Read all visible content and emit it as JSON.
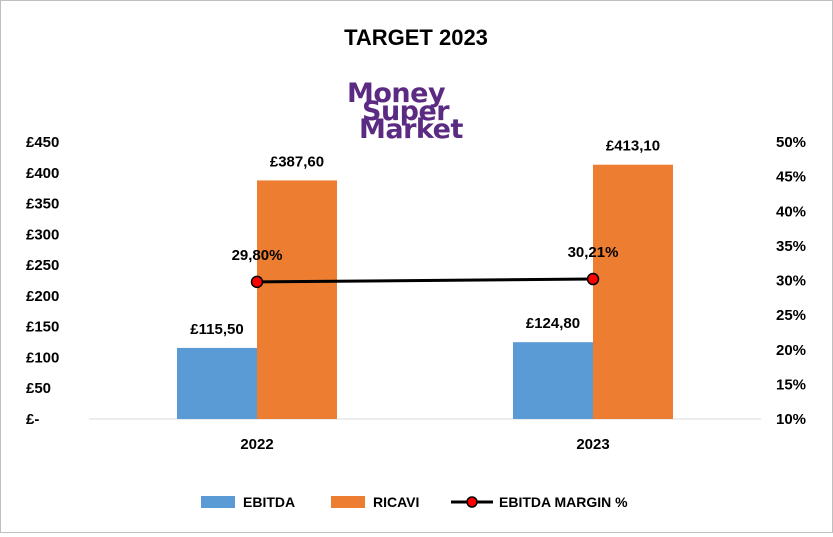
{
  "chart_data": {
    "type": "bar",
    "title": "TARGET 2023",
    "categories": [
      "2022",
      "2023"
    ],
    "series": [
      {
        "name": "EBITDA",
        "type": "bar",
        "axis": "left",
        "color": "#5b9bd5",
        "values": [
          115.5,
          124.8
        ],
        "labels": [
          "£115,50",
          "£124,80"
        ]
      },
      {
        "name": "RICAVI",
        "type": "bar",
        "axis": "left",
        "color": "#ed7d31",
        "values": [
          387.6,
          413.1
        ],
        "labels": [
          "£387,60",
          "£413,10"
        ]
      },
      {
        "name": "EBITDA MARGIN %",
        "type": "line",
        "axis": "right",
        "color": "#000000",
        "marker_color": "#ff0000",
        "values": [
          29.8,
          30.21
        ],
        "labels": [
          "29,80%",
          "30,21%"
        ]
      }
    ],
    "left_axis": {
      "ylim": [
        0,
        450
      ],
      "ticks": [
        0,
        50,
        100,
        150,
        200,
        250,
        300,
        350,
        400,
        450
      ],
      "tick_labels": [
        "£-",
        "£50",
        "£100",
        "£150",
        "£200",
        "£250",
        "£300",
        "£350",
        "£400",
        "£450"
      ]
    },
    "right_axis": {
      "ylim": [
        10,
        50
      ],
      "ticks": [
        10,
        15,
        20,
        25,
        30,
        35,
        40,
        45,
        50
      ],
      "tick_labels": [
        "10%",
        "15%",
        "20%",
        "25%",
        "30%",
        "35%",
        "40%",
        "45%",
        "50%"
      ]
    },
    "grid": false,
    "legend": "bottom"
  },
  "logo": {
    "name": "moneysupermarket-logo",
    "lines": [
      "Money",
      "Super",
      "Market"
    ],
    "color": "#5b2a82"
  }
}
